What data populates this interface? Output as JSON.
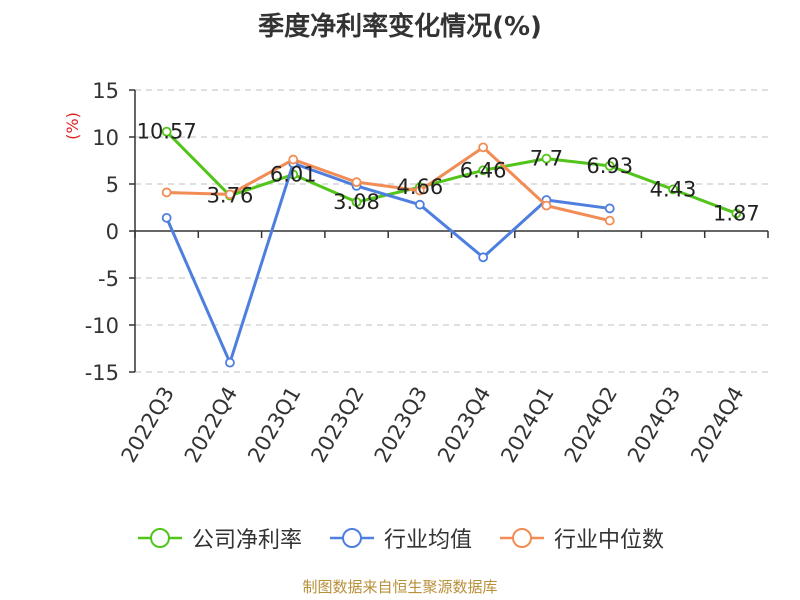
{
  "title": "季度净利率变化情况(%)",
  "source_note": "制图数据来自恒生聚源数据库",
  "chart_data": {
    "type": "line",
    "title": "季度净利率变化情况(%)",
    "ylabel": "(%)",
    "xlabel": "",
    "ylim": [
      -15,
      15
    ],
    "yticks": [
      "15",
      "10",
      "5",
      "0",
      "-5",
      "-10",
      "-15"
    ],
    "ytick_values": [
      15,
      10,
      5,
      0,
      -5,
      -10,
      -15
    ],
    "grid": true,
    "legend_position": "bottom",
    "categories": [
      "2022Q3",
      "2022Q4",
      "2023Q1",
      "2023Q2",
      "2023Q3",
      "2023Q4",
      "2024Q1",
      "2024Q2",
      "2024Q3",
      "2024Q4"
    ],
    "series": [
      {
        "name": "公司净利率",
        "color": "#52c41a",
        "values": [
          10.57,
          3.76,
          6.01,
          3.08,
          4.66,
          6.46,
          7.7,
          6.93,
          4.43,
          1.87
        ],
        "labels": [
          "10.57",
          "3.76",
          "6.01",
          "3.08",
          "4.66",
          "6.46",
          "7.7",
          "6.93",
          "4.43",
          "1.87"
        ]
      },
      {
        "name": "行业均值",
        "color": "#4e7fde",
        "values": [
          1.4,
          -14,
          7.2,
          4.8,
          2.8,
          -2.8,
          3.3,
          2.4,
          null,
          null
        ]
      },
      {
        "name": "行业中位数",
        "color": "#f28c55",
        "values": [
          4.1,
          3.9,
          7.6,
          5.2,
          4.3,
          8.9,
          2.7,
          1.1,
          null,
          null
        ]
      }
    ]
  }
}
